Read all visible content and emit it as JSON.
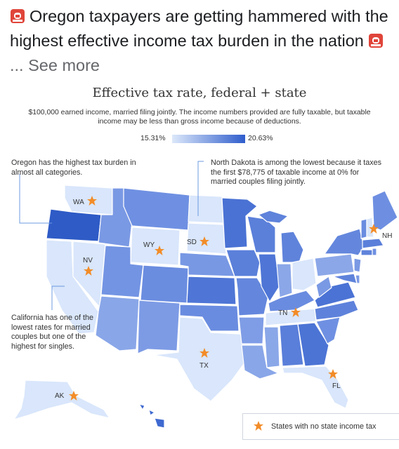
{
  "post": {
    "text": "Oregon taxpayers are getting hammered with the highest effective income tax burden in the nation",
    "see_more": "... See more",
    "icon": "police-siren-emoji"
  },
  "map": {
    "title": "Effective tax rate, federal + state",
    "subtitle": "$100,000 earned income, married filing jointly. The income numbers provided are fully taxable, but taxable income may be less than gross income because of deductions.",
    "legend": {
      "min": "15.31%",
      "max": "20.63%",
      "low_color": "#dce8fa",
      "high_color": "#2f5dcc"
    },
    "note_oregon": "Oregon has the highest tax burden in almost all categories.",
    "note_north_dakota": "North Dakota is among the lowest because it taxes the first $78,775 of taxable income at 0% for married couples filing jointly.",
    "note_california": "California has one of the lowest rates for married couples but one of the highest for singles.",
    "star_legend": "States with no state income tax",
    "star_color": "#f28c28",
    "no_tax_states": [
      "WA",
      "NV",
      "WY",
      "SD",
      "TX",
      "TN",
      "FL",
      "AK",
      "NH"
    ]
  }
}
